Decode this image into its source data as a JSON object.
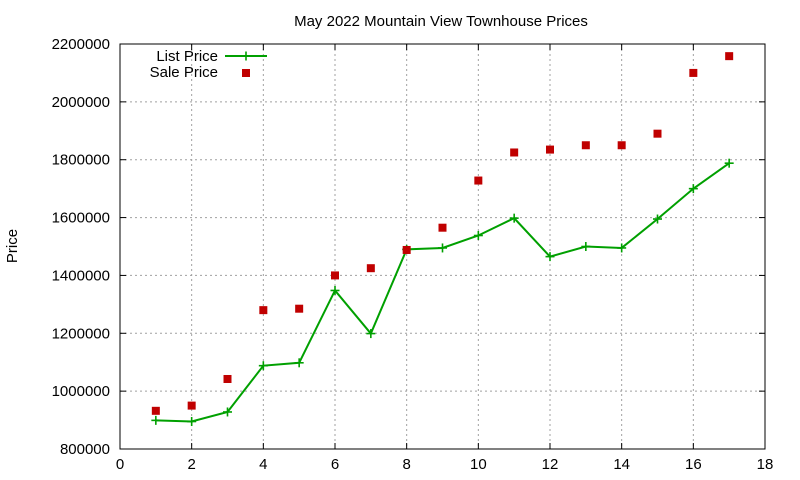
{
  "chart_data": {
    "type": "line",
    "title": "May 2022 Mountain View Townhouse Prices",
    "xlabel": "",
    "ylabel": "Price",
    "xlim": [
      0,
      18
    ],
    "ylim": [
      800000,
      2200000
    ],
    "xticks": [
      0,
      2,
      4,
      6,
      8,
      10,
      12,
      14,
      16,
      18
    ],
    "yticks": [
      800000,
      1000000,
      1200000,
      1400000,
      1600000,
      1800000,
      2000000,
      2200000
    ],
    "grid": true,
    "legend_position": "top-left",
    "series": [
      {
        "name": "List Price",
        "style": "lines-points",
        "marker": "plus",
        "color": "#00a000",
        "x": [
          1,
          2,
          3,
          4,
          5,
          6,
          7,
          8,
          9,
          10,
          11,
          12,
          13,
          14,
          15,
          16,
          17
        ],
        "values": [
          899000,
          895000,
          928000,
          1088000,
          1098000,
          1348000,
          1199000,
          1490000,
          1495000,
          1538000,
          1598000,
          1465000,
          1500000,
          1495000,
          1595000,
          1700000,
          1788000
        ]
      },
      {
        "name": "Sale Price",
        "style": "points",
        "marker": "square",
        "color": "#c00000",
        "x": [
          1,
          2,
          3,
          4,
          5,
          6,
          7,
          8,
          9,
          10,
          11,
          12,
          13,
          14,
          15,
          16,
          17
        ],
        "values": [
          932000,
          950000,
          1042000,
          1280000,
          1285000,
          1400000,
          1425000,
          1488000,
          1565000,
          1728000,
          1825000,
          1835000,
          1850000,
          1850000,
          1890000,
          2100000,
          2158000
        ]
      }
    ]
  }
}
